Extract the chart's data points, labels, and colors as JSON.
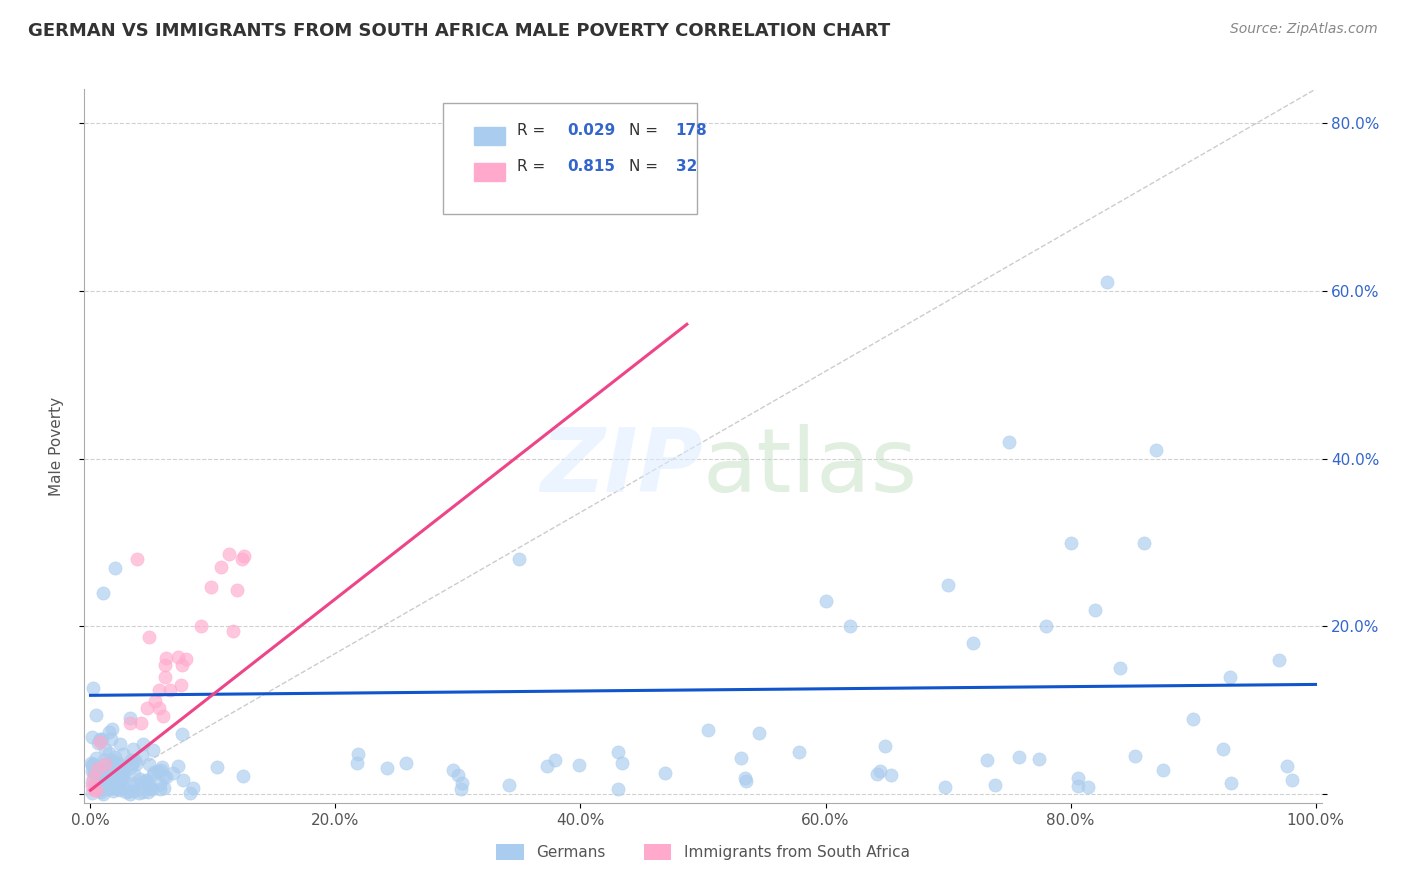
{
  "title": "GERMAN VS IMMIGRANTS FROM SOUTH AFRICA MALE POVERTY CORRELATION CHART",
  "source": "Source: ZipAtlas.com",
  "ylabel": "Male Poverty",
  "series": [
    {
      "name": "Germans",
      "R": 0.029,
      "N": 178,
      "color": "#aaccee",
      "line_color": "#1155cc",
      "alpha": 0.65
    },
    {
      "name": "Immigrants from South Africa",
      "R": 0.815,
      "N": 32,
      "color": "#ffaacc",
      "line_color": "#ee4488",
      "alpha": 0.65
    }
  ],
  "xlim": [
    -0.005,
    1.005
  ],
  "ylim": [
    -0.01,
    0.84
  ],
  "xticks": [
    0.0,
    0.2,
    0.4,
    0.6,
    0.8,
    1.0
  ],
  "yticks": [
    0.0,
    0.2,
    0.4,
    0.6,
    0.8
  ],
  "xticklabels": [
    "0.0%",
    "20.0%",
    "40.0%",
    "60.0%",
    "80.0%",
    "100.0%"
  ],
  "yticklabels_right": [
    "",
    "20.0%",
    "40.0%",
    "60.0%",
    "80.0%"
  ],
  "background_color": "#ffffff",
  "grid_color": "#cccccc"
}
